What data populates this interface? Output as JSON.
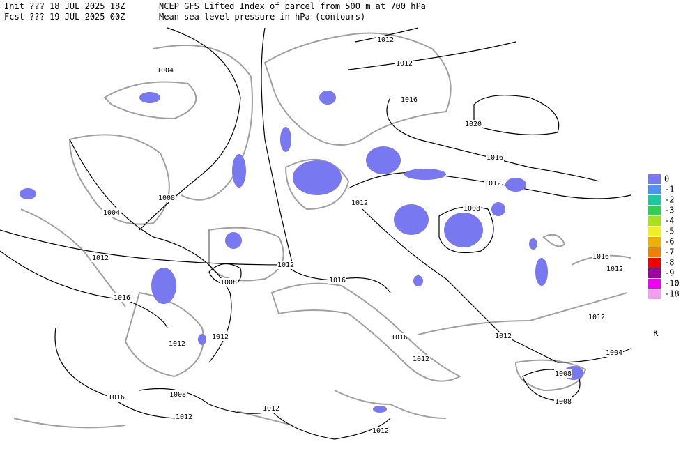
{
  "header": {
    "init": "Init  ??? 18 JUL 2025 18Z",
    "fcst": "Fcst ??? 19 JUL 2025 00Z",
    "title": "NCEP GFS Lifted Index of parcel from 500 m at 700 hPa",
    "subtitle": "Mean sea level pressure in hPa (contours)"
  },
  "legend": {
    "items": [
      {
        "label": "0",
        "color": "#7878f0"
      },
      {
        "label": "-1",
        "color": "#5090f0"
      },
      {
        "label": "-2",
        "color": "#20c8a0"
      },
      {
        "label": "-3",
        "color": "#30d050"
      },
      {
        "label": "-4",
        "color": "#a8e020"
      },
      {
        "label": "-5",
        "color": "#f0f020"
      },
      {
        "label": "-6",
        "color": "#f0b000"
      },
      {
        "label": "-7",
        "color": "#f08000"
      },
      {
        "label": "-8",
        "color": "#f00000"
      },
      {
        "label": "-9",
        "color": "#a000a0"
      },
      {
        "label": "-10",
        "color": "#f000f0"
      },
      {
        "label": "-18",
        "color": "#f0a0f0"
      }
    ],
    "unit": "K"
  },
  "contour_labels": [
    "1012",
    "1004",
    "1012",
    "1016",
    "1020",
    "1016",
    "1012",
    "1012",
    "1008",
    "1008",
    "1004",
    "1012",
    "1012",
    "1008",
    "1016",
    "1016",
    "1016",
    "1012",
    "1012",
    "1012",
    "1012",
    "1012",
    "1016",
    "1012",
    "1004",
    "1008",
    "1016",
    "1008",
    "1012",
    "1012",
    "1008",
    "1012"
  ]
}
